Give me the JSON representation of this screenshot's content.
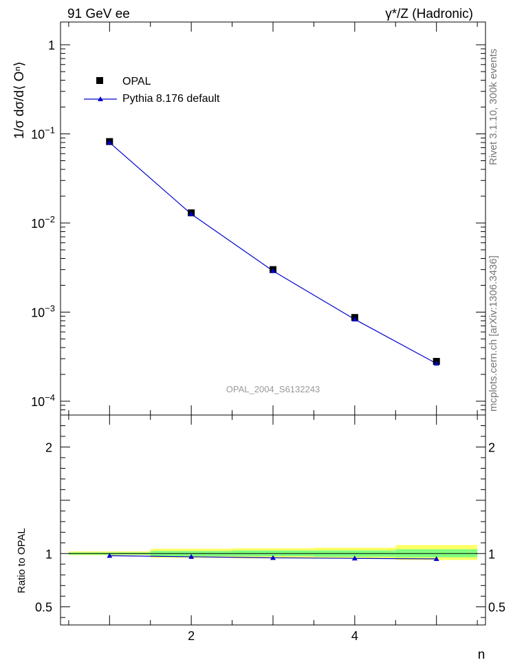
{
  "header": {
    "left_label": "91 GeV ee",
    "right_label": "γ*/Z (Hadronic)"
  },
  "side_labels": {
    "rivet": "Rivet 3.1.10,  300k events",
    "mcplots": "mcplots.cern.ch [arXiv:1306.3436]"
  },
  "watermark": "OPAL_2004_S6132243",
  "legend": {
    "data_label": "OPAL",
    "mc_label": "Pythia 8.176 default"
  },
  "colors": {
    "data": "#000000",
    "mc": "#0000cc",
    "band_inner": "#80ff80",
    "band_outer": "#ffff66"
  },
  "chart_data": [
    {
      "type": "scatter",
      "panel": "main",
      "ylabel": "1/σ dσ/d⟨ Oⁿ⟩",
      "yscale": "log",
      "ylim": [
        7e-05,
        1.8
      ],
      "xlim": [
        0.4,
        5.6
      ],
      "y_ticks": [
        {
          "value": 1,
          "label": "1"
        },
        {
          "value": 0.1,
          "label": "10",
          "exp": "−1"
        },
        {
          "value": 0.01,
          "label": "10",
          "exp": "−2"
        },
        {
          "value": 0.001,
          "label": "10",
          "exp": "−3"
        },
        {
          "value": 0.0001,
          "label": "10",
          "exp": "−4"
        }
      ],
      "series": [
        {
          "name": "OPAL",
          "x": [
            1,
            2,
            3,
            4,
            5
          ],
          "values": [
            0.082,
            0.013,
            0.003,
            0.00087,
            0.00028
          ]
        },
        {
          "name": "Pythia 8.176 default",
          "x": [
            1,
            2,
            3,
            4,
            5
          ],
          "values": [
            0.08,
            0.0126,
            0.0029,
            0.00083,
            0.000265
          ]
        }
      ]
    },
    {
      "type": "line",
      "panel": "ratio",
      "xlabel": "n",
      "ylabel": "Ratio to OPAL",
      "ylim": [
        0.33,
        2.3
      ],
      "xlim": [
        0.4,
        5.6
      ],
      "y_ticks": [
        {
          "value": 0.5,
          "label": "0.5"
        },
        {
          "value": 1,
          "label": "1"
        },
        {
          "value": 2,
          "label": "2"
        }
      ],
      "x_ticks": [
        {
          "value": 2,
          "label": "2"
        },
        {
          "value": 4,
          "label": "4"
        }
      ],
      "series": [
        {
          "name": "Pythia 8.176 default",
          "x": [
            1,
            2,
            3,
            4,
            5
          ],
          "values": [
            0.98,
            0.97,
            0.96,
            0.955,
            0.95
          ]
        }
      ],
      "bands": {
        "x_edges": [
          0.5,
          1.5,
          2.5,
          3.5,
          4.5,
          5.5
        ],
        "inner": [
          [
            0.99,
            1.01
          ],
          [
            0.975,
            1.025
          ],
          [
            0.975,
            1.03
          ],
          [
            0.97,
            1.03
          ],
          [
            0.965,
            1.04
          ]
        ],
        "outer": [
          [
            0.985,
            1.02
          ],
          [
            0.96,
            1.045
          ],
          [
            0.955,
            1.05
          ],
          [
            0.955,
            1.055
          ],
          [
            0.94,
            1.08
          ]
        ]
      }
    }
  ]
}
